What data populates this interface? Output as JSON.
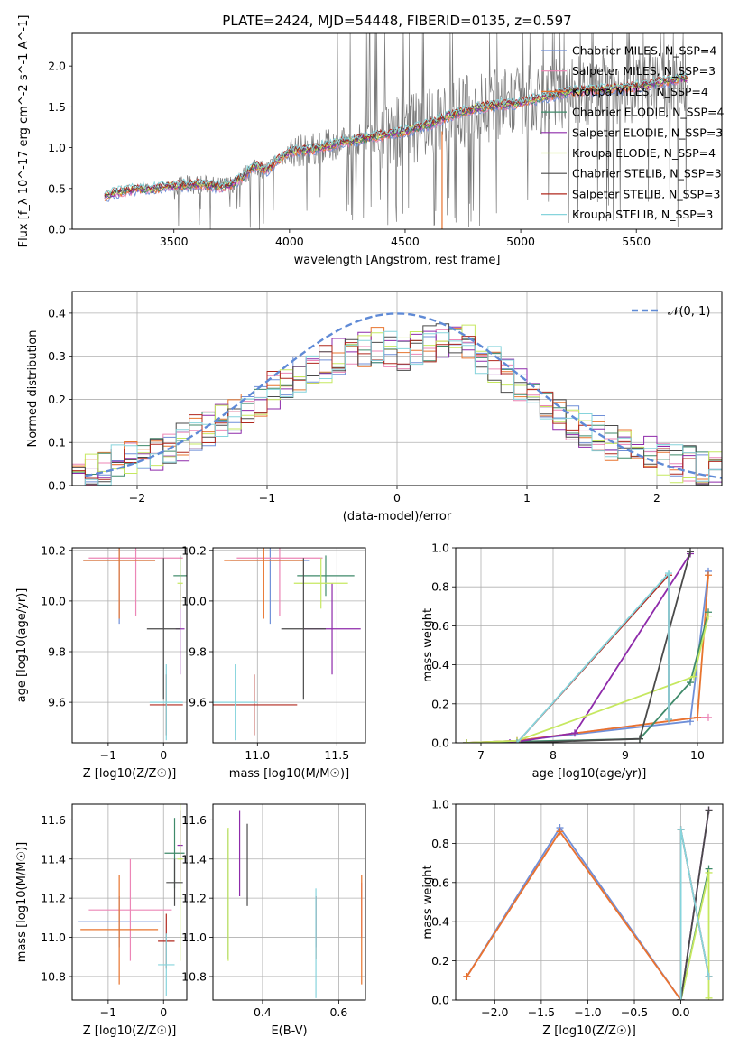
{
  "figure_title": "PLATE=2424, MJD=54448, FIBERID=0135, z=0.597",
  "colors": {
    "Chabrier MILES": "#6f8fd8",
    "Salpeter MILES": "#ec86b6",
    "Kroupa MILES": "#e8742e",
    "Chabrier ELODIE": "#3f8a6a",
    "Salpeter ELODIE": "#8e2aaa",
    "Kroupa ELODIE": "#c6e860",
    "Chabrier STELIB": "#4a4a4a",
    "Salpeter STELIB": "#b0281e",
    "Kroupa STELIB": "#86d4dc",
    "spectrum": "#7a7a7a",
    "normal_curve": "#5f8ad6"
  },
  "chart_data": [
    {
      "type": "line",
      "title": "PLATE=2424, MJD=54448, FIBERID=0135, z=0.597",
      "xlabel": "wavelength [Angstrom, rest frame]",
      "ylabel": "Flux [f_λ 10^-17 erg cm^-2 s^-1 A^-1]",
      "xlim": [
        3060,
        5870
      ],
      "ylim": [
        0,
        2.4
      ],
      "xticks": [
        3500,
        4000,
        4500,
        5000,
        5500
      ],
      "yticks": [
        0.0,
        0.5,
        1.0,
        1.5,
        2.0
      ],
      "ytick_labels": [
        "0.0",
        "0.5",
        "1.0",
        "1.5",
        "2.0"
      ],
      "grid": false,
      "legend_position": "top-right",
      "legend": [
        "Chabrier MILES, N_SSP=4",
        "Salpeter MILES, N_SSP=3",
        "Kroupa MILES, N_SSP=4",
        "Chabrier ELODIE, N_SSP=4",
        "Salpeter ELODIE, N_SSP=3",
        "Kroupa ELODIE, N_SSP=4",
        "Chabrier STELIB, N_SSP=3",
        "Salpeter STELIB, N_SSP=3",
        "Kroupa STELIB, N_SSP=3"
      ],
      "model_continuum": {
        "x": [
          3200,
          3250,
          3300,
          3350,
          3400,
          3450,
          3500,
          3550,
          3600,
          3650,
          3700,
          3750,
          3800,
          3850,
          3900,
          3950,
          4000,
          4100,
          4200,
          4300,
          4400,
          4500,
          4600,
          4700,
          4800,
          4900,
          5000,
          5100,
          5200,
          5300,
          5400,
          5500,
          5600,
          5700
        ],
        "y": [
          0.4,
          0.45,
          0.47,
          0.5,
          0.49,
          0.52,
          0.53,
          0.54,
          0.55,
          0.54,
          0.52,
          0.55,
          0.65,
          0.78,
          0.72,
          0.85,
          0.95,
          0.98,
          1.05,
          1.1,
          1.15,
          1.2,
          1.28,
          1.4,
          1.48,
          1.52,
          1.55,
          1.62,
          1.68,
          1.7,
          1.72,
          1.75,
          1.8,
          1.85
        ]
      },
      "series_colors_order": [
        "Chabrier MILES",
        "Salpeter MILES",
        "Kroupa MILES",
        "Chabrier ELODIE",
        "Salpeter ELODIE",
        "Kroupa ELODIE",
        "Chabrier STELIB",
        "Salpeter STELIB",
        "Kroupa STELIB"
      ]
    },
    {
      "type": "line",
      "xlabel": "(data-model)/error",
      "ylabel": "Normed distribution",
      "xlim": [
        -2.5,
        2.5
      ],
      "ylim": [
        0,
        0.45
      ],
      "xticks": [
        -2,
        -1,
        0,
        1,
        2
      ],
      "xtick_labels": [
        "−2",
        "−1",
        "0",
        "1",
        "2"
      ],
      "yticks": [
        0.0,
        0.1,
        0.2,
        0.3,
        0.4
      ],
      "ytick_labels": [
        "0.0",
        "0.1",
        "0.2",
        "0.3",
        "0.4"
      ],
      "grid": true,
      "legend": [
        "𝒩(0, 1)"
      ],
      "legend_position": "top-right",
      "histogram_bins": [
        -2.5,
        -2.4,
        -2.3,
        -2.2,
        -2.1,
        -2.0,
        -1.9,
        -1.8,
        -1.7,
        -1.6,
        -1.5,
        -1.4,
        -1.3,
        -1.2,
        -1.1,
        -1.0,
        -0.9,
        -0.8,
        -0.7,
        -0.6,
        -0.5,
        -0.4,
        -0.3,
        -0.2,
        -0.1,
        0.0,
        0.1,
        0.2,
        0.3,
        0.4,
        0.5,
        0.6,
        0.7,
        0.8,
        0.9,
        1.0,
        1.1,
        1.2,
        1.3,
        1.4,
        1.5,
        1.6,
        1.7,
        1.8,
        1.9,
        2.0,
        2.1,
        2.2,
        2.3,
        2.4,
        2.5
      ],
      "histogram_base": [
        0.02,
        0.03,
        0.04,
        0.05,
        0.06,
        0.07,
        0.08,
        0.09,
        0.1,
        0.12,
        0.13,
        0.15,
        0.16,
        0.18,
        0.2,
        0.22,
        0.23,
        0.26,
        0.27,
        0.28,
        0.3,
        0.31,
        0.32,
        0.33,
        0.32,
        0.31,
        0.32,
        0.33,
        0.34,
        0.34,
        0.33,
        0.3,
        0.28,
        0.25,
        0.23,
        0.2,
        0.18,
        0.16,
        0.15,
        0.13,
        0.12,
        0.1,
        0.09,
        0.08,
        0.07,
        0.06,
        0.05,
        0.05,
        0.04,
        0.04
      ]
    },
    {
      "type": "scatter",
      "xlabel": "Z [log10(Z/Z☉)]",
      "ylabel": "age [log10(age/yr)]",
      "xlim": [
        -1.65,
        0.42
      ],
      "ylim": [
        9.44,
        10.21
      ],
      "xticks": [
        -1,
        0
      ],
      "xtick_labels": [
        "−1",
        "0"
      ],
      "yticks": [
        9.6,
        9.8,
        10.0,
        10.2
      ],
      "ytick_labels": [
        "9.6",
        "9.8",
        "10.0",
        "10.2"
      ],
      "grid": true,
      "errorbars": [
        {
          "series": "Chabrier MILES",
          "x": -0.8,
          "y": 10.16,
          "xerr": 0.65,
          "yerr": 0.25
        },
        {
          "series": "Salpeter MILES",
          "x": -0.5,
          "y": 10.17,
          "xerr": 0.85,
          "yerr": 0.23
        },
        {
          "series": "Kroupa MILES",
          "x": -0.8,
          "y": 10.16,
          "xerr": 0.65,
          "yerr": 0.23
        },
        {
          "series": "Chabrier ELODIE",
          "x": 0.3,
          "y": 10.1,
          "xerr": 0.12,
          "yerr": 0.08
        },
        {
          "series": "Salpeter ELODIE",
          "x": 0.3,
          "y": 9.89,
          "xerr": 0.08,
          "yerr": 0.18
        },
        {
          "series": "Kroupa ELODIE",
          "x": 0.3,
          "y": 10.07,
          "xerr": 0.05,
          "yerr": 0.1
        },
        {
          "series": "Chabrier STELIB",
          "x": 0.0,
          "y": 9.89,
          "xerr": 0.3,
          "yerr": 0.28
        },
        {
          "series": "Salpeter STELIB",
          "x": 0.05,
          "y": 9.59,
          "xerr": 0.3,
          "yerr": 0.12
        },
        {
          "series": "Kroupa STELIB",
          "x": 0.05,
          "y": 9.6,
          "xerr": 0.3,
          "yerr": 0.15
        }
      ]
    },
    {
      "type": "scatter",
      "xlabel": "mass [log10(M/M☉)]",
      "xlim": [
        10.72,
        11.68
      ],
      "ylim": [
        9.44,
        10.21
      ],
      "xticks": [
        11.0,
        11.5
      ],
      "xtick_labels": [
        "11.0",
        "11.5"
      ],
      "yticks": [
        9.6,
        9.8,
        10.0,
        10.2
      ],
      "ytick_labels": [
        "9.6",
        "9.8",
        "10.0",
        "10.2"
      ],
      "grid": true,
      "errorbars": [
        {
          "series": "Chabrier MILES",
          "x": 11.08,
          "y": 10.16,
          "xerr": 0.25,
          "yerr": 0.25
        },
        {
          "series": "Salpeter MILES",
          "x": 11.14,
          "y": 10.17,
          "xerr": 0.27,
          "yerr": 0.23
        },
        {
          "series": "Kroupa MILES",
          "x": 11.04,
          "y": 10.16,
          "xerr": 0.25,
          "yerr": 0.23
        },
        {
          "series": "Chabrier ELODIE",
          "x": 11.43,
          "y": 10.1,
          "xerr": 0.18,
          "yerr": 0.08
        },
        {
          "series": "Salpeter ELODIE",
          "x": 11.47,
          "y": 9.89,
          "xerr": 0.18,
          "yerr": 0.18
        },
        {
          "series": "Kroupa ELODIE",
          "x": 11.4,
          "y": 10.07,
          "xerr": 0.17,
          "yerr": 0.1
        },
        {
          "series": "Chabrier STELIB",
          "x": 11.29,
          "y": 9.89,
          "xerr": 0.14,
          "yerr": 0.28
        },
        {
          "series": "Salpeter STELIB",
          "x": 10.98,
          "y": 9.59,
          "xerr": 0.27,
          "yerr": 0.12
        },
        {
          "series": "Kroupa STELIB",
          "x": 10.86,
          "y": 9.6,
          "xerr": 0.14,
          "yerr": 0.15
        }
      ]
    },
    {
      "type": "line",
      "xlabel": "age [log10(age/yr)]",
      "ylabel": "mass weight",
      "xlim": [
        6.65,
        10.35
      ],
      "ylim": [
        0,
        1.0
      ],
      "xticks": [
        7,
        8,
        9,
        10
      ],
      "yticks": [
        0.0,
        0.2,
        0.4,
        0.6,
        0.8,
        1.0
      ],
      "ytick_labels": [
        "0.0",
        "0.2",
        "0.4",
        "0.6",
        "0.8",
        "1.0"
      ],
      "grid": true,
      "series": [
        {
          "name": "Chabrier MILES",
          "x": [
            6.8,
            7.5,
            9.9,
            10.15
          ],
          "y": [
            0.0,
            0.01,
            0.11,
            0.88
          ]
        },
        {
          "name": "Salpeter MILES",
          "x": [
            6.8,
            7.5,
            10.0,
            10.15
          ],
          "y": [
            0.0,
            0.01,
            0.13,
            0.13
          ]
        },
        {
          "name": "Kroupa MILES",
          "x": [
            6.8,
            7.5,
            10.0,
            10.15
          ],
          "y": [
            0.0,
            0.01,
            0.13,
            0.86
          ]
        },
        {
          "name": "Chabrier ELODIE",
          "x": [
            6.8,
            9.2,
            9.9,
            10.15
          ],
          "y": [
            0.0,
            0.02,
            0.31,
            0.67
          ]
        },
        {
          "name": "Salpeter ELODIE",
          "x": [
            7.4,
            8.3,
            9.9
          ],
          "y": [
            0.0,
            0.05,
            0.97
          ]
        },
        {
          "name": "Kroupa ELODIE",
          "x": [
            6.8,
            7.5,
            9.95,
            10.15
          ],
          "y": [
            0.0,
            0.01,
            0.34,
            0.65
          ]
        },
        {
          "name": "Chabrier STELIB",
          "x": [
            7.5,
            9.2,
            9.9
          ],
          "y": [
            0.0,
            0.02,
            0.98
          ]
        },
        {
          "name": "Salpeter STELIB",
          "x": [
            7.5,
            9.6,
            9.6
          ],
          "y": [
            0.0,
            0.86,
            0.12
          ]
        },
        {
          "name": "Kroupa STELIB",
          "x": [
            7.5,
            9.6,
            9.6
          ],
          "y": [
            0.0,
            0.87,
            0.12
          ]
        }
      ]
    },
    {
      "type": "scatter",
      "xlabel": "Z [log10(Z/Z☉)]",
      "ylabel": "mass [log10(M/M☉)]",
      "xlim": [
        -1.65,
        0.42
      ],
      "ylim": [
        10.68,
        11.68
      ],
      "xticks": [
        -1,
        0
      ],
      "xtick_labels": [
        "−1",
        "0"
      ],
      "yticks": [
        10.8,
        11.0,
        11.2,
        11.4,
        11.6
      ],
      "ytick_labels": [
        "10.8",
        "11.0",
        "11.2",
        "11.4",
        "11.6"
      ],
      "grid": true,
      "errorbars": [
        {
          "series": "Chabrier MILES",
          "x": -0.8,
          "y": 11.08,
          "xerr": 0.75,
          "yerr": 0.13
        },
        {
          "series": "Salpeter MILES",
          "x": -0.6,
          "y": 11.14,
          "xerr": 0.75,
          "yerr": 0.26
        },
        {
          "series": "Kroupa MILES",
          "x": -0.8,
          "y": 11.04,
          "xerr": 0.7,
          "yerr": 0.28
        },
        {
          "series": "Chabrier ELODIE",
          "x": 0.2,
          "y": 11.43,
          "xerr": 0.18,
          "yerr": 0.18
        },
        {
          "series": "Salpeter ELODIE",
          "x": 0.3,
          "y": 11.47,
          "xerr": 0.05,
          "yerr": 0.18
        },
        {
          "series": "Kroupa ELODIE",
          "x": 0.3,
          "y": 11.4,
          "xerr": 0.05,
          "yerr": 0.52
        },
        {
          "series": "Chabrier STELIB",
          "x": 0.2,
          "y": 11.28,
          "xerr": 0.15,
          "yerr": 0.12
        },
        {
          "series": "Salpeter STELIB",
          "x": 0.05,
          "y": 10.98,
          "xerr": 0.15,
          "yerr": 0.14
        },
        {
          "series": "Kroupa STELIB",
          "x": 0.05,
          "y": 10.86,
          "xerr": 0.15,
          "yerr": 0.16
        }
      ]
    },
    {
      "type": "scatter",
      "xlabel": "E(B-V)",
      "xlim": [
        0.27,
        0.67
      ],
      "ylim": [
        10.68,
        11.68
      ],
      "xticks": [
        0.4,
        0.6
      ],
      "xtick_labels": [
        "0.4",
        "0.6"
      ],
      "yticks": [
        10.8,
        11.0,
        11.2,
        11.4,
        11.6
      ],
      "ytick_labels": [
        "10.8",
        "11.0",
        "11.2",
        "11.4",
        "11.6"
      ],
      "grid": true,
      "errorbars": [
        {
          "series": "Chabrier MILES",
          "x": 0.54,
          "y": 11.08,
          "xerr": 0.0,
          "yerr": 0.13
        },
        {
          "series": "Salpeter MILES",
          "x": 0.66,
          "y": 11.14,
          "xerr": 0.0,
          "yerr": 0.14
        },
        {
          "series": "Kroupa MILES",
          "x": 0.66,
          "y": 11.04,
          "xerr": 0.0,
          "yerr": 0.28
        },
        {
          "series": "Chabrier ELODIE",
          "x": 0.31,
          "y": 11.22,
          "xerr": 0.0,
          "yerr": 0.33
        },
        {
          "series": "Salpeter ELODIE",
          "x": 0.34,
          "y": 11.43,
          "xerr": 0.0,
          "yerr": 0.22
        },
        {
          "series": "Kroupa ELODIE",
          "x": 0.31,
          "y": 11.22,
          "xerr": 0.0,
          "yerr": 0.34
        },
        {
          "series": "Chabrier STELIB",
          "x": 0.36,
          "y": 11.37,
          "xerr": 0.0,
          "yerr": 0.21
        },
        {
          "series": "Salpeter STELIB",
          "x": 0.54,
          "y": 11.05,
          "xerr": 0.0,
          "yerr": 0.16
        },
        {
          "series": "Kroupa STELIB",
          "x": 0.54,
          "y": 10.97,
          "xerr": 0.0,
          "yerr": 0.28
        }
      ]
    },
    {
      "type": "line",
      "xlabel": "Z [log10(Z/Z☉)]",
      "ylabel": "mass weight",
      "xlim": [
        -2.42,
        0.45
      ],
      "ylim": [
        0,
        1.0
      ],
      "xticks": [
        -2.0,
        -1.5,
        -1.0,
        -0.5,
        0.0
      ],
      "xtick_labels": [
        "−2.0",
        "−1.5",
        "−1.0",
        "−0.5",
        "0.0"
      ],
      "yticks": [
        0.0,
        0.2,
        0.4,
        0.6,
        0.8,
        1.0
      ],
      "ytick_labels": [
        "0.0",
        "0.2",
        "0.4",
        "0.6",
        "0.8",
        "1.0"
      ],
      "grid": true,
      "series": [
        {
          "name": "Chabrier MILES",
          "x": [
            -2.3,
            -1.3,
            0.0
          ],
          "y": [
            0.12,
            0.88,
            0.0
          ]
        },
        {
          "name": "Salpeter MILES",
          "x": [
            -2.3,
            -1.3,
            0.0
          ],
          "y": [
            0.12,
            0.86,
            0.0
          ]
        },
        {
          "name": "Kroupa MILES",
          "x": [
            -2.3,
            -1.3,
            0.0
          ],
          "y": [
            0.12,
            0.86,
            0.0
          ]
        },
        {
          "name": "Chabrier ELODIE",
          "x": [
            0.0,
            0.3
          ],
          "y": [
            0.0,
            0.67
          ]
        },
        {
          "name": "Salpeter ELODIE",
          "x": [
            0.0,
            0.3
          ],
          "y": [
            0.0,
            0.97
          ]
        },
        {
          "name": "Kroupa ELODIE",
          "x": [
            0.0,
            0.3,
            0.3
          ],
          "y": [
            0.0,
            0.65,
            0.01
          ]
        },
        {
          "name": "Chabrier STELIB",
          "x": [
            0.0,
            0.3
          ],
          "y": [
            0.0,
            0.97
          ]
        },
        {
          "name": "Salpeter STELIB",
          "x": [
            0.0,
            0.0,
            0.3
          ],
          "y": [
            0.0,
            0.87,
            0.12
          ]
        },
        {
          "name": "Kroupa STELIB",
          "x": [
            0.0,
            0.0,
            0.3
          ],
          "y": [
            0.0,
            0.87,
            0.12
          ]
        }
      ]
    }
  ]
}
